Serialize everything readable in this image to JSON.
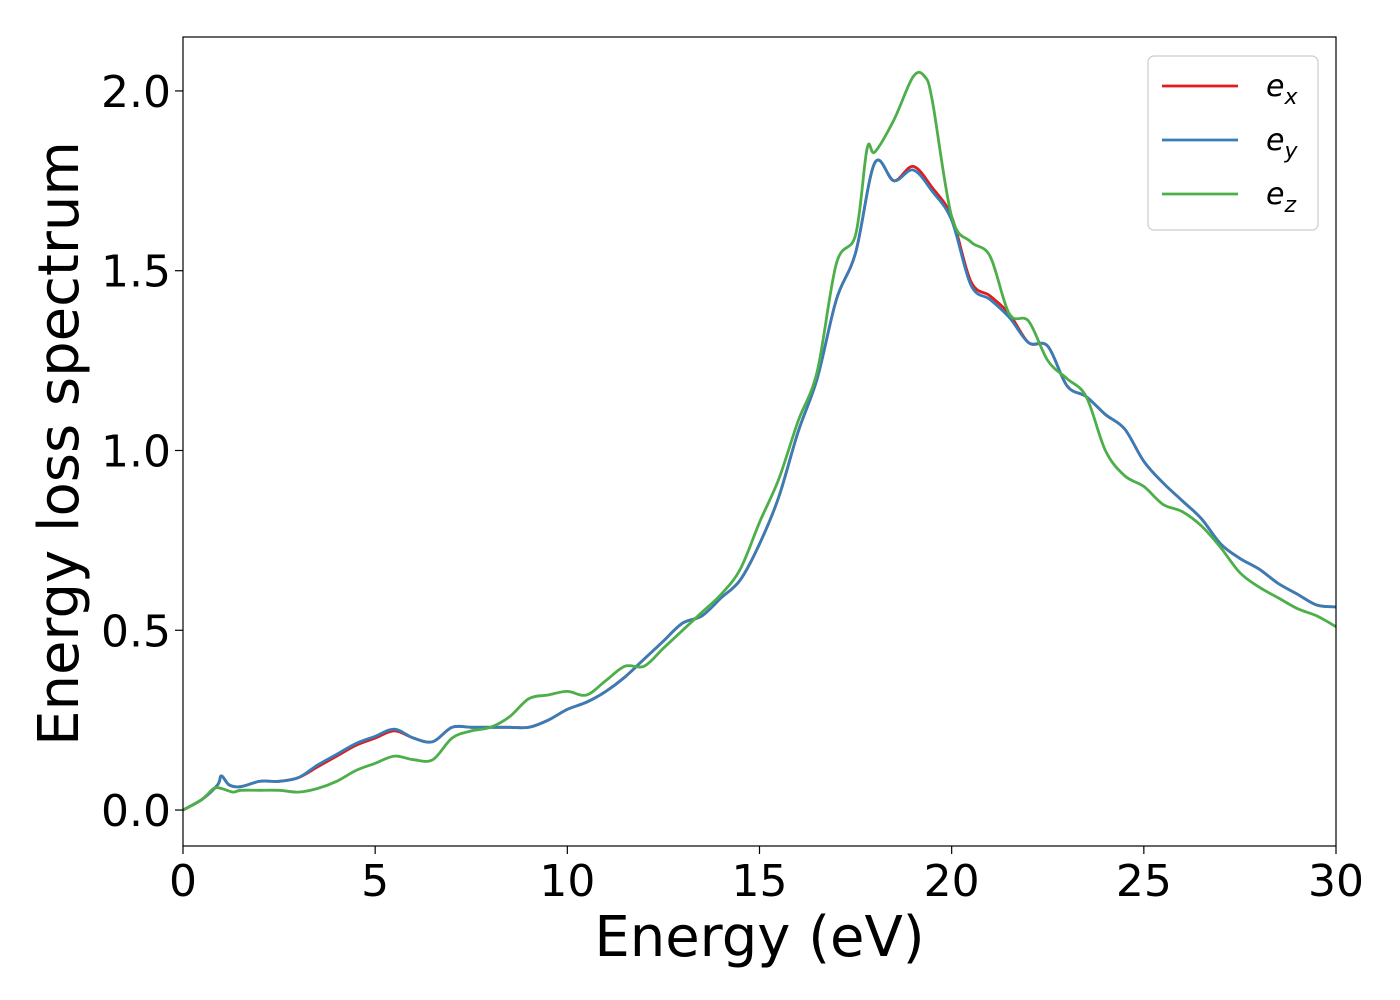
{
  "chart_data": {
    "type": "line",
    "title": "",
    "xlabel": "Energy (eV)",
    "ylabel": "Energy loss spectrum",
    "xlim": [
      0,
      30
    ],
    "ylim": [
      -0.1,
      2.15
    ],
    "xticks": [
      0,
      5,
      10,
      15,
      20,
      25,
      30
    ],
    "xtick_labels": [
      "0",
      "5",
      "10",
      "15",
      "20",
      "25",
      "30"
    ],
    "yticks": [
      0.0,
      0.5,
      1.0,
      1.5,
      2.0
    ],
    "ytick_labels": [
      "0.0",
      "0.5",
      "1.0",
      "1.5",
      "2.0"
    ],
    "grid": false,
    "legend_position": "top-right",
    "series": [
      {
        "name": "e",
        "subscript": "x",
        "color": "#e41a1c",
        "x": [
          0,
          0.5,
          0.9,
          1.0,
          1.2,
          1.5,
          2.0,
          2.5,
          3.0,
          3.5,
          4.0,
          4.5,
          5.0,
          5.5,
          6.0,
          6.5,
          7.0,
          7.5,
          8.0,
          8.5,
          9.0,
          9.5,
          10.0,
          10.5,
          11.0,
          11.5,
          12.0,
          12.5,
          13.0,
          13.5,
          14.0,
          14.5,
          15.0,
          15.5,
          16.0,
          16.5,
          17.0,
          17.5,
          18.0,
          18.5,
          19.0,
          19.5,
          20.0,
          20.5,
          21.0,
          21.5,
          22.0,
          22.5,
          23.0,
          23.5,
          24.0,
          24.5,
          25.0,
          25.5,
          26.0,
          26.5,
          27.0,
          27.5,
          28.0,
          28.5,
          29.0,
          29.5,
          30.0
        ],
        "values": [
          0.0,
          0.03,
          0.07,
          0.095,
          0.07,
          0.065,
          0.08,
          0.08,
          0.09,
          0.12,
          0.15,
          0.18,
          0.2,
          0.22,
          0.2,
          0.19,
          0.23,
          0.23,
          0.23,
          0.23,
          0.23,
          0.25,
          0.28,
          0.3,
          0.33,
          0.37,
          0.42,
          0.47,
          0.52,
          0.54,
          0.59,
          0.64,
          0.74,
          0.87,
          1.05,
          1.2,
          1.42,
          1.55,
          1.8,
          1.75,
          1.79,
          1.73,
          1.65,
          1.47,
          1.43,
          1.38,
          1.3,
          1.29,
          1.18,
          1.15,
          1.1,
          1.06,
          0.97,
          0.91,
          0.86,
          0.81,
          0.74,
          0.7,
          0.67,
          0.63,
          0.6,
          0.57,
          0.565
        ]
      },
      {
        "name": "e",
        "subscript": "y",
        "color": "#377eb8",
        "x": [
          0,
          0.5,
          0.9,
          1.0,
          1.2,
          1.5,
          2.0,
          2.5,
          3.0,
          3.5,
          4.0,
          4.5,
          5.0,
          5.5,
          6.0,
          6.5,
          7.0,
          7.5,
          8.0,
          8.5,
          9.0,
          9.5,
          10.0,
          10.5,
          11.0,
          11.5,
          12.0,
          12.5,
          13.0,
          13.5,
          14.0,
          14.5,
          15.0,
          15.5,
          16.0,
          16.5,
          17.0,
          17.5,
          18.0,
          18.5,
          19.0,
          19.5,
          20.0,
          20.5,
          21.0,
          21.5,
          22.0,
          22.5,
          23.0,
          23.5,
          24.0,
          24.5,
          25.0,
          25.5,
          26.0,
          26.5,
          27.0,
          27.5,
          28.0,
          28.5,
          29.0,
          29.5,
          30.0
        ],
        "values": [
          0.0,
          0.03,
          0.07,
          0.095,
          0.07,
          0.065,
          0.08,
          0.08,
          0.09,
          0.125,
          0.155,
          0.185,
          0.205,
          0.225,
          0.2,
          0.19,
          0.23,
          0.23,
          0.23,
          0.23,
          0.23,
          0.25,
          0.28,
          0.3,
          0.33,
          0.37,
          0.42,
          0.47,
          0.52,
          0.54,
          0.59,
          0.64,
          0.74,
          0.87,
          1.05,
          1.2,
          1.42,
          1.55,
          1.8,
          1.75,
          1.78,
          1.72,
          1.64,
          1.46,
          1.42,
          1.37,
          1.3,
          1.29,
          1.18,
          1.15,
          1.1,
          1.06,
          0.97,
          0.91,
          0.86,
          0.81,
          0.74,
          0.7,
          0.67,
          0.63,
          0.6,
          0.57,
          0.565
        ]
      },
      {
        "name": "e",
        "subscript": "z",
        "color": "#4daf4a",
        "x": [
          0,
          0.5,
          0.8,
          1.0,
          1.3,
          1.5,
          2.0,
          2.5,
          3.0,
          3.5,
          4.0,
          4.5,
          5.0,
          5.5,
          6.0,
          6.5,
          7.0,
          7.5,
          8.0,
          8.5,
          9.0,
          9.5,
          10.0,
          10.5,
          11.0,
          11.5,
          12.0,
          12.5,
          13.0,
          13.5,
          14.0,
          14.5,
          15.0,
          15.5,
          16.0,
          16.5,
          17.0,
          17.5,
          17.8,
          18.0,
          18.5,
          19.0,
          19.3,
          19.5,
          20.0,
          20.5,
          21.0,
          21.5,
          22.0,
          22.5,
          23.0,
          23.5,
          24.0,
          24.5,
          25.0,
          25.5,
          26.0,
          26.5,
          27.0,
          27.5,
          28.0,
          28.5,
          29.0,
          29.5,
          30.0
        ],
        "values": [
          0.0,
          0.03,
          0.06,
          0.06,
          0.05,
          0.055,
          0.055,
          0.055,
          0.05,
          0.06,
          0.08,
          0.11,
          0.13,
          0.15,
          0.14,
          0.14,
          0.2,
          0.22,
          0.23,
          0.26,
          0.31,
          0.32,
          0.33,
          0.32,
          0.36,
          0.4,
          0.4,
          0.45,
          0.5,
          0.55,
          0.6,
          0.67,
          0.8,
          0.92,
          1.08,
          1.22,
          1.52,
          1.6,
          1.84,
          1.83,
          1.92,
          2.04,
          2.04,
          1.97,
          1.65,
          1.58,
          1.54,
          1.38,
          1.36,
          1.25,
          1.2,
          1.15,
          1.0,
          0.93,
          0.9,
          0.85,
          0.83,
          0.79,
          0.73,
          0.66,
          0.62,
          0.59,
          0.56,
          0.54,
          0.51
        ]
      }
    ]
  }
}
